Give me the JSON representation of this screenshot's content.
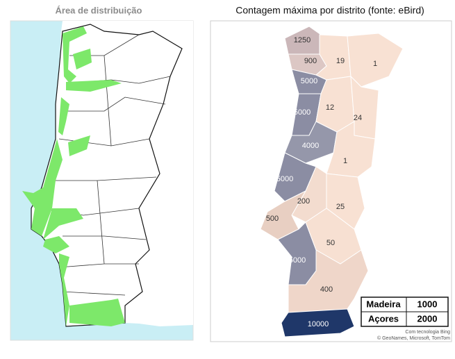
{
  "left_panel": {
    "title": "Área de distribuição"
  },
  "right_panel": {
    "title": "Contagem máxima por distrito (fonte: eBird)",
    "districts": [
      {
        "value": 1250,
        "color": "#cbb7b9"
      },
      {
        "value": 900,
        "color": "#dcc7c4"
      },
      {
        "value": 19,
        "color": "#f8e1d3"
      },
      {
        "value": 1,
        "color": "#f8e1d3"
      },
      {
        "value": 5000,
        "color": "#8b8da3"
      },
      {
        "value": 5000,
        "color": "#8b8da3"
      },
      {
        "value": 12,
        "color": "#f8e1d3"
      },
      {
        "value": 24,
        "color": "#f8e1d3"
      },
      {
        "value": 4000,
        "color": "#9597aa"
      },
      {
        "value": 1,
        "color": "#f8e1d3"
      },
      {
        "value": 5000,
        "color": "#8b8da3"
      },
      {
        "value": 200,
        "color": "#f3dccf"
      },
      {
        "value": 25,
        "color": "#f8e1d3"
      },
      {
        "value": 500,
        "color": "#e8cfc2"
      },
      {
        "value": 5000,
        "color": "#8b8da3"
      },
      {
        "value": 50,
        "color": "#f7e0d2"
      },
      {
        "value": 400,
        "color": "#efd6c9"
      },
      {
        "value": 10000,
        "color": "#1f3769"
      }
    ],
    "islands": [
      {
        "name": "Madeira",
        "value": 1000
      },
      {
        "name": "Açores",
        "value": 2000
      }
    ],
    "attribution": [
      "Com tecnologia Bing",
      "© GeoNames, Microsoft, TomTom"
    ]
  }
}
